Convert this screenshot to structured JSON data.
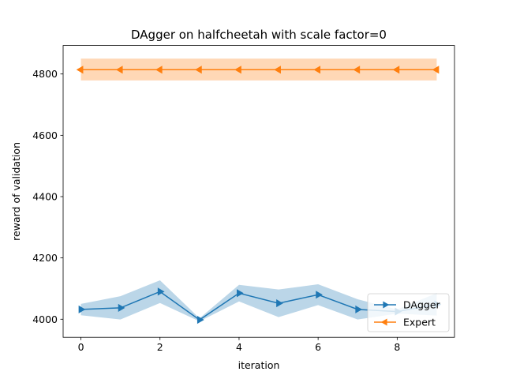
{
  "chart_data": {
    "type": "line",
    "title": "DAgger on halfcheetah with scale factor=0",
    "xlabel": "iteration",
    "ylabel": "reward of validation",
    "x": [
      0,
      1,
      2,
      3,
      4,
      5,
      6,
      7,
      8,
      9
    ],
    "xlim": [
      -0.45,
      9.45
    ],
    "ylim": [
      3941,
      4893
    ],
    "xticks": [
      0,
      2,
      4,
      6,
      8
    ],
    "yticks": [
      4000,
      4200,
      4400,
      4600,
      4800
    ],
    "grid": false,
    "legend_position": "lower-right",
    "series": [
      {
        "name": "DAgger",
        "color": "#1f77b4",
        "band_color": "#1f77b4",
        "marker": "triangle-right",
        "values": [
          4032,
          4037,
          4090,
          3998,
          4085,
          4052,
          4080,
          4032,
          4025,
          4048
        ],
        "lower": [
          4013,
          3999,
          4053,
          3993,
          4058,
          4007,
          4046,
          3999,
          4018,
          4012
        ],
        "upper": [
          4050,
          4075,
          4127,
          4003,
          4112,
          4097,
          4114,
          4065,
          4032,
          4085
        ]
      },
      {
        "name": "Expert",
        "color": "#ff7f0e",
        "band_color": "#ff7f0e",
        "marker": "triangle-left",
        "values": [
          4814,
          4814,
          4814,
          4814,
          4814,
          4814,
          4814,
          4814,
          4814,
          4814
        ],
        "lower": [
          4779,
          4779,
          4779,
          4779,
          4779,
          4779,
          4779,
          4779,
          4779,
          4779
        ],
        "upper": [
          4850,
          4850,
          4850,
          4850,
          4850,
          4850,
          4850,
          4850,
          4850,
          4850
        ]
      }
    ]
  }
}
